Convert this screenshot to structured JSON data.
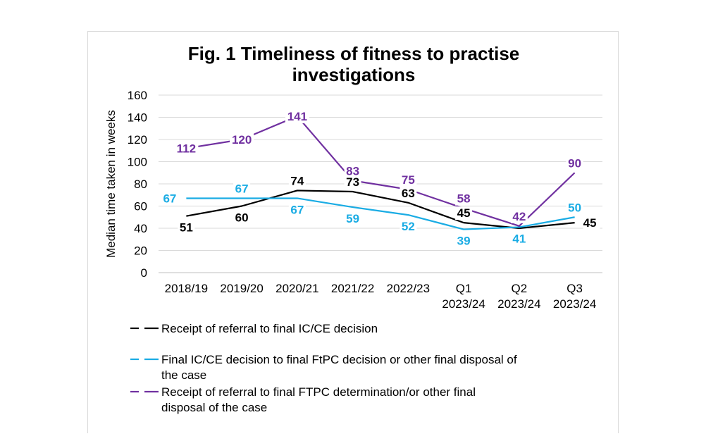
{
  "chart_data": {
    "type": "line",
    "title_lines": [
      "Fig. 1 Timeliness of fitness to practise",
      "investigations"
    ],
    "ylabel": "Median time taken in weeks",
    "xlabel": "",
    "ylim": [
      0,
      160
    ],
    "yticks": [
      0,
      20,
      40,
      60,
      80,
      100,
      120,
      140,
      160
    ],
    "grid": true,
    "legend_position": "bottom",
    "categories": [
      [
        "2018/19"
      ],
      [
        "2019/20"
      ],
      [
        "2020/21"
      ],
      [
        "2021/22"
      ],
      [
        "2022/23"
      ],
      [
        "Q1",
        "2023/24"
      ],
      [
        "Q2",
        "2023/24"
      ],
      [
        "Q3",
        "2023/24"
      ]
    ],
    "series": [
      {
        "name_lines": [
          "Receipt of referral to final IC/CE decision"
        ],
        "color": "#000000",
        "values": [
          51,
          60,
          74,
          73,
          63,
          45,
          40,
          45
        ],
        "label_pos": [
          "below",
          "below",
          "above",
          "above",
          "above",
          "above",
          "below",
          "right"
        ]
      },
      {
        "name_lines": [
          "Final IC/CE decision to final FtPC decision or other final disposal of",
          "the case"
        ],
        "color": "#1aace4",
        "values": [
          67,
          67,
          67,
          59,
          52,
          39,
          41,
          50
        ],
        "label_pos": [
          "left",
          "above",
          "below",
          "below",
          "below",
          "below",
          "below",
          "above"
        ]
      },
      {
        "name_lines": [
          "Receipt of referral to final FTPC determination/or other final",
          "disposal of the case"
        ],
        "color": "#7030a0",
        "values": [
          112,
          120,
          141,
          83,
          75,
          58,
          42,
          90
        ],
        "label_pos": [
          "center",
          "center",
          "center",
          "above",
          "above",
          "above",
          "above",
          "above"
        ]
      }
    ]
  }
}
